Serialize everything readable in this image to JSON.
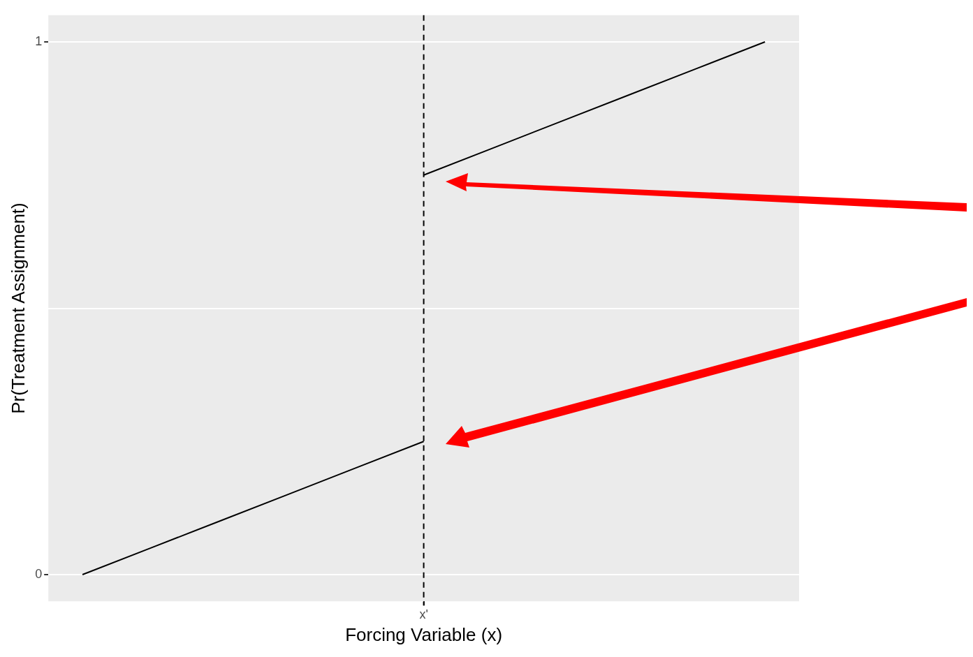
{
  "chart_data": {
    "type": "line",
    "xlabel": "Forcing Variable (x)",
    "ylabel": "Pr(Treatment Assignment)",
    "categories": [
      null,
      null,
      null,
      null,
      null,
      "x'",
      null,
      null,
      null,
      null,
      null
    ],
    "series": [
      {
        "color": "#000000",
        "values": [
          0,
          0.05,
          0.1,
          0.15,
          0.2,
          0.25,
          null,
          null,
          null,
          null,
          null
        ]
      },
      {
        "color": "#000000",
        "values": [
          null,
          null,
          null,
          null,
          null,
          0.75,
          0.8,
          0.85,
          0.9,
          0.95,
          1
        ]
      }
    ],
    "ylim": [
      -0.05,
      1.05
    ],
    "yticks": [
      0,
      {
        "value": 0.5,
        "label": null
      },
      1
    ],
    "grid": "y",
    "legend": false,
    "marker": "none",
    "line_style": "solid",
    "ref_lines": [
      {
        "axis": "x",
        "value": "x'",
        "color": "#000000",
        "line_style": "dashed"
      }
    ]
  }
}
